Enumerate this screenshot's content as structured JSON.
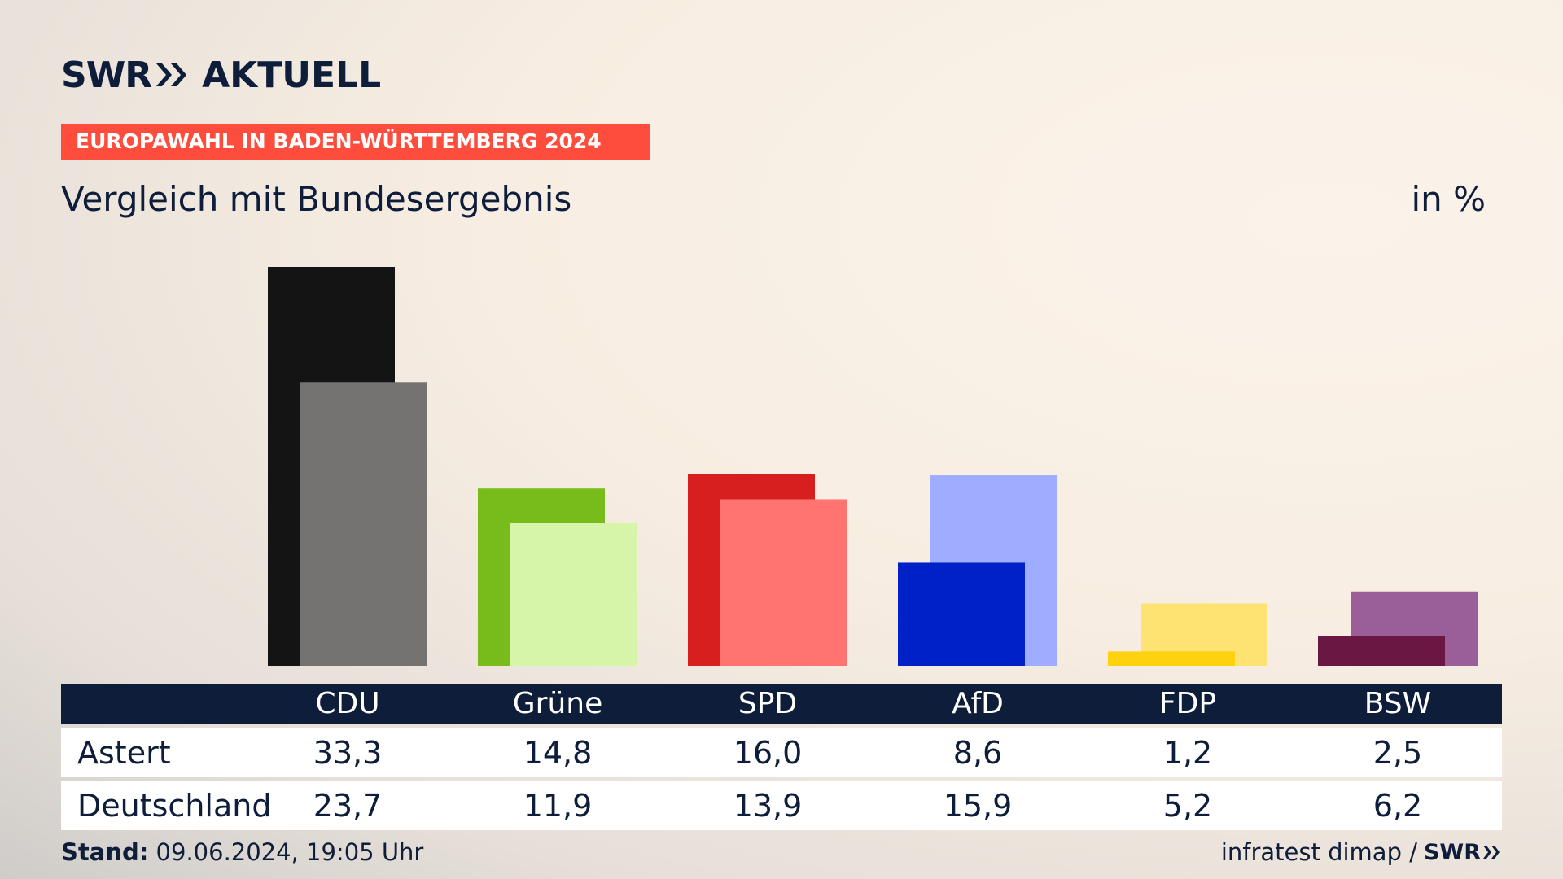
{
  "brand": {
    "swr": "SWR",
    "aktuell": "AKTUELL"
  },
  "banner": "EUROPAWAHL IN BADEN-WÜRTTEMBERG 2024",
  "subtitle": "Vergleich mit Bundesergebnis",
  "unit": "in %",
  "footer": {
    "stand_label": "Stand:",
    "stand_value": " 09.06.2024, 19:05 Uhr",
    "source": "infratest dimap /",
    "source_brand": "SWR"
  },
  "chart_data": {
    "type": "bar",
    "categories": [
      "CDU",
      "Grüne",
      "SPD",
      "AfD",
      "FDP",
      "BSW"
    ],
    "series": [
      {
        "name": "Astert",
        "values": [
          33.3,
          14.8,
          16.0,
          8.6,
          1.2,
          2.5
        ]
      },
      {
        "name": "Deutschland",
        "values": [
          23.7,
          11.9,
          13.9,
          15.9,
          5.2,
          6.2
        ]
      }
    ],
    "ylim": [
      0,
      33.3
    ],
    "colors": {
      "primary": [
        "#141414",
        "#78bc1c",
        "#d81f1f",
        "#0021c7",
        "#ffd20f",
        "#6a1843"
      ],
      "secondary": [
        "#757371",
        "#d7f5a9",
        "#ff7370",
        "#9eadff",
        "#fee272",
        "#9a5f98"
      ]
    }
  },
  "table": {
    "header_color": "#0e1e3a",
    "rows": [
      {
        "label": "Astert",
        "values": [
          "33,3",
          "14,8",
          "16,0",
          "8,6",
          "1,2",
          "2,5"
        ]
      },
      {
        "label": "Deutschland",
        "values": [
          "23,7",
          "11,9",
          "13,9",
          "15,9",
          "5,2",
          "6,2"
        ]
      }
    ]
  }
}
